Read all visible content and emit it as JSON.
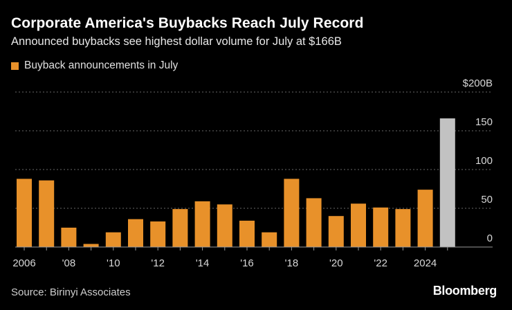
{
  "header": {
    "title": "Corporate America's Buybacks Reach July Record",
    "subtitle": "Announced buybacks see highest dollar volume for July at $166B"
  },
  "legend": {
    "label": "Buyback announcements in July",
    "color": "#e8912a"
  },
  "chart_data": {
    "type": "bar",
    "title": "Corporate America's Buybacks Reach July Record",
    "subtitle": "Announced buybacks see highest dollar volume for July at $166B",
    "xlabel": "",
    "ylabel": "",
    "ylim": [
      0,
      200
    ],
    "y_ticks": [
      0,
      50,
      100,
      150,
      200
    ],
    "y_tick_labels": [
      "0",
      "50",
      "100",
      "150",
      "$200B"
    ],
    "grid": true,
    "legend_position": "top-left",
    "categories": [
      "2006",
      "2007",
      "2008",
      "2009",
      "2010",
      "2011",
      "2012",
      "2013",
      "2014",
      "2015",
      "2016",
      "2017",
      "2018",
      "2019",
      "2020",
      "2021",
      "2022",
      "2023",
      "2024",
      "2025"
    ],
    "x_tick_labels": [
      "2006",
      "",
      "'08",
      "",
      "'10",
      "",
      "'12",
      "",
      "'14",
      "",
      "'16",
      "",
      "'18",
      "",
      "'20",
      "",
      "'22",
      "",
      "2024",
      ""
    ],
    "values": [
      88,
      86,
      25,
      4,
      19,
      36,
      33,
      49,
      59,
      55,
      34,
      19,
      88,
      63,
      40,
      56,
      51,
      49,
      74,
      166
    ],
    "colors": [
      "#e8912a",
      "#e8912a",
      "#e8912a",
      "#e8912a",
      "#e8912a",
      "#e8912a",
      "#e8912a",
      "#e8912a",
      "#e8912a",
      "#e8912a",
      "#e8912a",
      "#e8912a",
      "#e8912a",
      "#e8912a",
      "#e8912a",
      "#e8912a",
      "#e8912a",
      "#e8912a",
      "#e8912a",
      "#c2c2c2"
    ],
    "series": [
      {
        "name": "Buyback announcements in July",
        "values": [
          88,
          86,
          25,
          4,
          19,
          36,
          33,
          49,
          59,
          55,
          34,
          19,
          88,
          63,
          40,
          56,
          51,
          49,
          74,
          166
        ]
      }
    ]
  },
  "footer": {
    "source": "Source: Birinyi Associates",
    "brand": "Bloomberg"
  }
}
